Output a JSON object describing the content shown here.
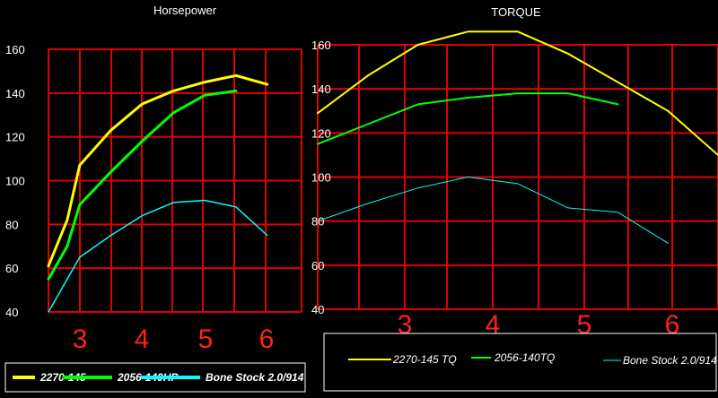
{
  "chart_data": [
    {
      "type": "line",
      "title": "Horsepower",
      "x": [
        2.5,
        2.8,
        3.0,
        3.5,
        4.0,
        4.5,
        5.0,
        5.5,
        6.0,
        6.5
      ],
      "ylim": [
        40,
        160
      ],
      "yticks": [
        "40",
        "60",
        "80",
        "100",
        "120",
        "140",
        "160"
      ],
      "xticks": [
        "3",
        "4",
        "5",
        "6"
      ],
      "grid": true,
      "legend_position": "bottom",
      "series": [
        {
          "name": "2270-145",
          "color": "#ffff00",
          "width": 3,
          "bold": true,
          "values": [
            61,
            82,
            107,
            123,
            135,
            141,
            145,
            148,
            144,
            null
          ]
        },
        {
          "name": "2056-140HP",
          "color": "#00ff00",
          "width": 3,
          "bold": true,
          "values": [
            55,
            70,
            89,
            104,
            118,
            131,
            139,
            141,
            null,
            null
          ]
        },
        {
          "name": "Bone Stock 2.0/914",
          "color": "#00ffff",
          "width": 1.5,
          "bold": true,
          "values": [
            40,
            55,
            65,
            75,
            84,
            90,
            91,
            88,
            75,
            null
          ]
        }
      ]
    },
    {
      "type": "line",
      "title": "TORQUE",
      "ylim": [
        40,
        160
      ],
      "yticks": [
        "40",
        "60",
        "80",
        "100",
        "120",
        "140",
        "160"
      ],
      "xticks": [
        "3",
        "4",
        "5",
        "6"
      ],
      "grid": true,
      "legend_position": "bottom",
      "series": [
        {
          "name": "2270-145 TQ",
          "color": "#ffff00",
          "width": 2,
          "bold": false,
          "x": [
            2.5,
            3.0,
            3.5,
            4.0,
            4.5,
            5.0,
            5.5,
            6.0,
            6.5
          ],
          "values": [
            129,
            146,
            160,
            166,
            166,
            156,
            143,
            130,
            110
          ]
        },
        {
          "name": "2056-140TQ",
          "color": "#00ff00",
          "width": 2,
          "bold": false,
          "x": [
            2.5,
            3.0,
            3.5,
            4.0,
            4.5,
            5.0,
            5.5
          ],
          "values": [
            115,
            124,
            133,
            136,
            138,
            138,
            133
          ]
        },
        {
          "name": "Bone Stock 2.0/914",
          "color": "#00ffff",
          "width": 1,
          "bold": false,
          "x": [
            2.5,
            3.0,
            3.5,
            4.0,
            4.5,
            5.0,
            5.5,
            6.0
          ],
          "values": [
            80,
            88,
            95,
            100,
            97,
            86,
            84,
            70
          ]
        }
      ]
    }
  ]
}
